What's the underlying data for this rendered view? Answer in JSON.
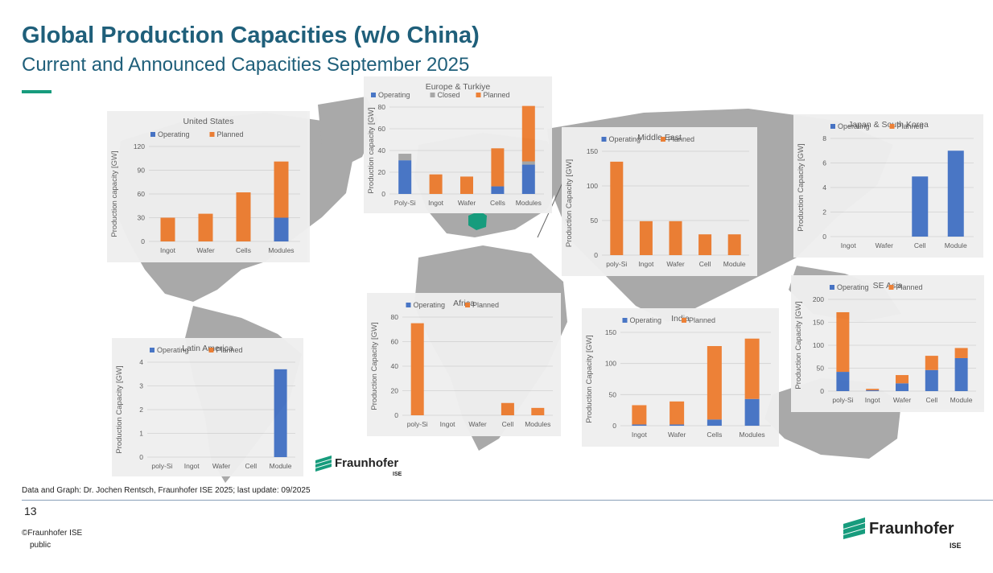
{
  "header": {
    "title": "Global Production Capacities (w/o China)",
    "subtitle": "Current and Announced Capacities September 2025"
  },
  "footer": {
    "source": "Data and Graph: Dr. Jochen Rentsch, Fraunhofer ISE 2025; last update: 09/2025",
    "page_number": "13",
    "copyright": "©Fraunhofer ISE",
    "classification": "public"
  },
  "logo": {
    "name": "Fraunhofer",
    "sub": "ISE",
    "color": "#179c7d"
  },
  "colors": {
    "operating": "#4472c4",
    "planned": "#ed7d31",
    "closed": "#a5a5a5",
    "highlight": "#179c7d"
  },
  "chart_data": [
    {
      "type": "bar",
      "stacked": true,
      "title": "United States",
      "ylabel": "Production capacity [GW]",
      "ylim": [
        0,
        120
      ],
      "yticks": [
        0,
        30,
        60,
        90,
        120
      ],
      "categories": [
        "Ingot",
        "Wafer",
        "Cells",
        "Modules"
      ],
      "series": [
        {
          "name": "Operating",
          "values": [
            0,
            0,
            0,
            30
          ]
        },
        {
          "name": "Planned",
          "values": [
            30,
            35,
            62,
            71
          ]
        }
      ]
    },
    {
      "type": "bar",
      "stacked": true,
      "title": "Europe & Turkiye",
      "ylabel": "Production capacity [GW]",
      "ylim": [
        0,
        80
      ],
      "yticks": [
        0,
        20,
        40,
        60,
        80
      ],
      "categories": [
        "Poly-Si",
        "Ingot",
        "Wafer",
        "Cells",
        "Modules"
      ],
      "series": [
        {
          "name": "Operating",
          "values": [
            31,
            0,
            0,
            7,
            27
          ]
        },
        {
          "name": "Closed",
          "values": [
            6,
            0,
            0,
            0,
            3
          ]
        },
        {
          "name": "Planned",
          "values": [
            0,
            18,
            16,
            35,
            51
          ]
        }
      ]
    },
    {
      "type": "bar",
      "stacked": true,
      "title": "Middle East",
      "ylabel": "Production Capacity [GW]",
      "ylim": [
        0,
        150
      ],
      "yticks": [
        0,
        50,
        100,
        150
      ],
      "categories": [
        "poly-Si",
        "Ingot",
        "Wafer",
        "Cell",
        "Module"
      ],
      "series": [
        {
          "name": "Operating",
          "values": [
            0,
            0,
            0,
            0,
            0
          ]
        },
        {
          "name": "Planned",
          "values": [
            135,
            49,
            49,
            30,
            30
          ]
        }
      ]
    },
    {
      "type": "bar",
      "stacked": true,
      "title": "Japan & South Korea",
      "ylabel": "Production Capacity [GW]",
      "ylim": [
        0,
        8
      ],
      "yticks": [
        0,
        2,
        4,
        6,
        8
      ],
      "categories": [
        "Ingot",
        "Wafer",
        "Cell",
        "Module"
      ],
      "series": [
        {
          "name": "Operating",
          "values": [
            0,
            0,
            4.9,
            7
          ]
        },
        {
          "name": "Planned",
          "values": [
            0,
            0,
            0,
            0
          ]
        }
      ]
    },
    {
      "type": "bar",
      "stacked": true,
      "title": "Latin America",
      "ylabel": "Production Capacity [GW]",
      "ylim": [
        0,
        4
      ],
      "yticks": [
        0,
        1,
        2,
        3,
        4
      ],
      "categories": [
        "poly-Si",
        "Ingot",
        "Wafer",
        "Cell",
        "Module"
      ],
      "series": [
        {
          "name": "Operating",
          "values": [
            0,
            0,
            0,
            0,
            3.7
          ]
        },
        {
          "name": "Planned",
          "values": [
            0,
            0,
            0,
            0,
            0
          ]
        }
      ]
    },
    {
      "type": "bar",
      "stacked": true,
      "title": "Africa",
      "ylabel": "Production Capacity [GW]",
      "ylim": [
        0,
        80
      ],
      "yticks": [
        0,
        20,
        40,
        60,
        80
      ],
      "categories": [
        "poly-Si",
        "Ingot",
        "Wafer",
        "Cell",
        "Modules"
      ],
      "series": [
        {
          "name": "Operating",
          "values": [
            0,
            0,
            0,
            0,
            0
          ]
        },
        {
          "name": "Planned",
          "values": [
            75,
            0,
            0,
            10,
            6
          ]
        }
      ]
    },
    {
      "type": "bar",
      "stacked": true,
      "title": "India",
      "ylabel": "Production Capacity [GW]",
      "ylim": [
        0,
        150
      ],
      "yticks": [
        0,
        50,
        100,
        150
      ],
      "categories": [
        "Ingot",
        "Wafer",
        "Cells",
        "Modules"
      ],
      "series": [
        {
          "name": "Operating",
          "values": [
            2,
            2,
            10,
            43
          ]
        },
        {
          "name": "Planned",
          "values": [
            31,
            37,
            118,
            97
          ]
        }
      ]
    },
    {
      "type": "bar",
      "stacked": true,
      "title": "SE Asia",
      "ylabel": "Production Capacity [GW]",
      "ylim": [
        0,
        200
      ],
      "yticks": [
        0,
        50,
        100,
        150,
        200
      ],
      "categories": [
        "poly-Si",
        "Ingot",
        "Wafer",
        "Cell",
        "Module"
      ],
      "series": [
        {
          "name": "Operating",
          "values": [
            42,
            2,
            17,
            46,
            72
          ]
        },
        {
          "name": "Planned",
          "values": [
            130,
            3,
            18,
            31,
            22
          ]
        }
      ]
    }
  ]
}
